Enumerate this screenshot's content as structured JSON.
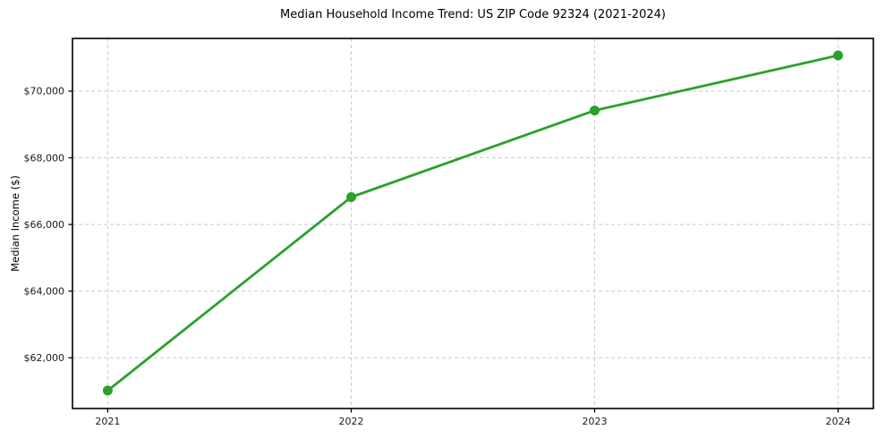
{
  "chart_data": {
    "type": "line",
    "title": "Median Household Income Trend: US ZIP Code 92324 (2021-2024)",
    "xlabel": "",
    "ylabel": "Median Income ($)",
    "categories": [
      "2021",
      "2022",
      "2023",
      "2024"
    ],
    "values": [
      61020,
      66820,
      69420,
      71070
    ],
    "ytick_values": [
      62000,
      64000,
      66000,
      68000,
      70000
    ],
    "ytick_labels": [
      "$62,000",
      "$64,000",
      "$66,000",
      "$68,000",
      "$70,000"
    ],
    "ylim": [
      60480,
      71580
    ],
    "x_margin": 0.044,
    "grid": true,
    "grid_style": "dashed",
    "legend_position": "none",
    "colors": {
      "line": "#2ca02c",
      "marker": "#2ca02c",
      "grid": "#cccccc",
      "axis": "#000000",
      "text": "#1a1a1a",
      "background": "#ffffff"
    }
  }
}
